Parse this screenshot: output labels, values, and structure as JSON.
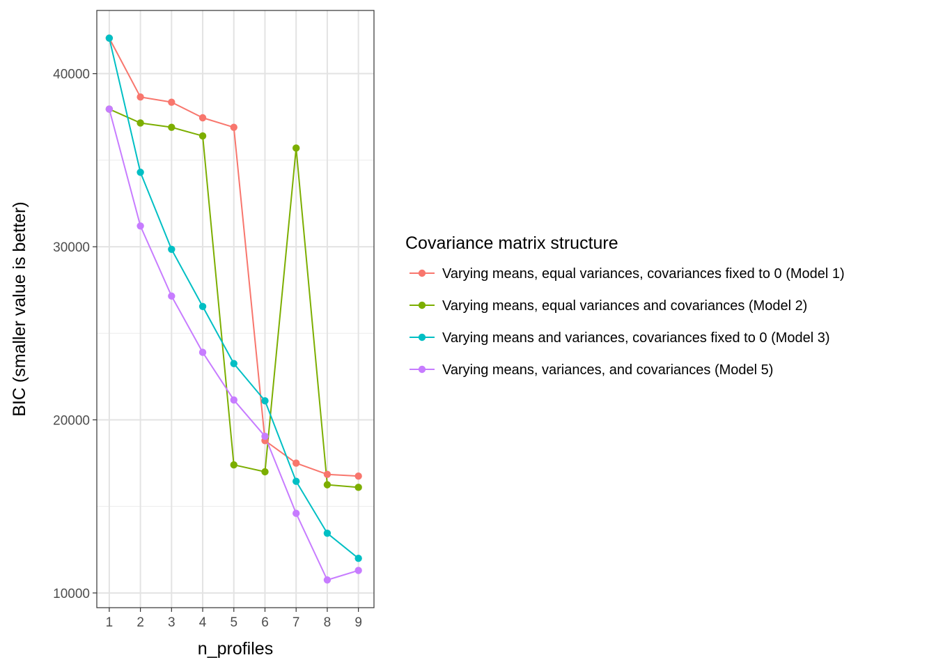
{
  "chart_data": {
    "type": "line",
    "title": "",
    "xlabel": "n_profiles",
    "ylabel": "BIC (smaller value is better)",
    "x": [
      1,
      2,
      3,
      4,
      5,
      6,
      7,
      8,
      9
    ],
    "xlim": [
      0.6,
      9.5
    ],
    "ylim": [
      9150,
      43650
    ],
    "y_ticks": [
      10000,
      20000,
      30000,
      40000
    ],
    "grid": true,
    "legend": {
      "title": "Covariance matrix structure",
      "position": "right"
    },
    "series": [
      {
        "name": "Varying means, equal variances, covariances fixed to 0 (Model 1)",
        "color": "#F8766D",
        "values": [
          42050,
          38650,
          38350,
          37450,
          36900,
          18800,
          17500,
          16850,
          16750
        ]
      },
      {
        "name": "Varying means, equal variances and covariances (Model 2)",
        "color": "#7CAE00",
        "values": [
          37950,
          37150,
          36900,
          36400,
          17400,
          17000,
          35700,
          16250,
          16100
        ]
      },
      {
        "name": "Varying means and variances, covariances fixed to 0 (Model 3)",
        "color": "#00BFC4",
        "values": [
          42050,
          34300,
          29850,
          26550,
          23250,
          21100,
          16450,
          13450,
          12000
        ]
      },
      {
        "name": "Varying means, variances, and covariances (Model 5)",
        "color": "#C77CFF",
        "values": [
          37950,
          31200,
          27150,
          23900,
          21150,
          19050,
          14600,
          10750,
          11300
        ]
      }
    ]
  }
}
